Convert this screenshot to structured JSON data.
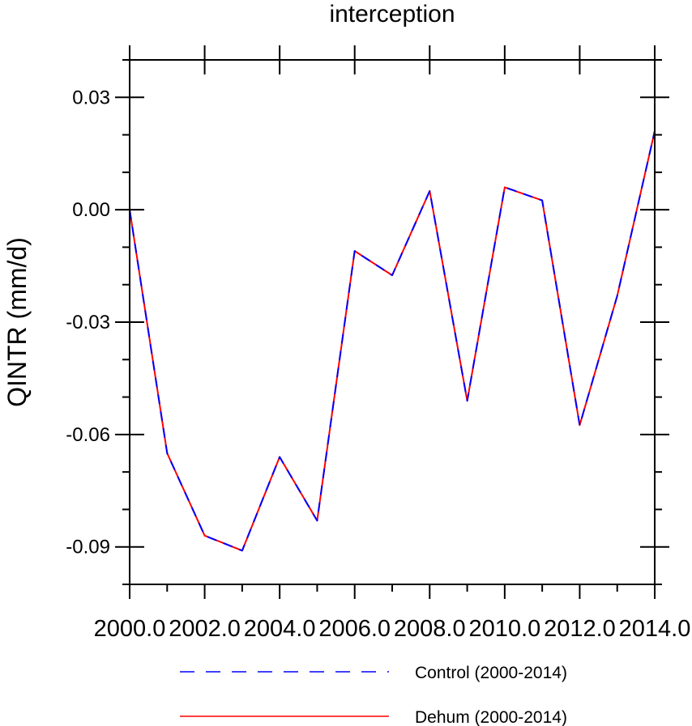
{
  "chart_data": {
    "type": "line",
    "title": "interception",
    "ylabel": "QINTR  (mm/d)",
    "xlabel": "",
    "xlim": [
      2000,
      2014
    ],
    "ylim": [
      -0.1,
      0.04
    ],
    "x_ticks": [
      2000,
      2002,
      2004,
      2006,
      2008,
      2010,
      2012,
      2014
    ],
    "x_tick_labels": [
      "2000.0",
      "2002.0",
      "2004.0",
      "2006.0",
      "2008.0",
      "2010.0",
      "2012.0",
      "2014.0"
    ],
    "y_ticks": [
      0.03,
      0.0,
      -0.03,
      -0.06,
      -0.09
    ],
    "y_tick_labels": [
      "0.03",
      "0.00",
      "-0.03",
      "-0.06",
      "-0.09"
    ],
    "grid": false,
    "legend_position": "bottom",
    "x": [
      2000,
      2001,
      2002,
      2003,
      2004,
      2005,
      2006,
      2007,
      2008,
      2009,
      2010,
      2011,
      2012,
      2013,
      2014
    ],
    "series": [
      {
        "name": "Control (2000-2014)",
        "color": "#0000ff",
        "style": "dashed",
        "values": [
          0.0,
          -0.065,
          -0.087,
          -0.091,
          -0.066,
          -0.083,
          -0.011,
          -0.0175,
          0.005,
          -0.051,
          0.006,
          0.0025,
          -0.0575,
          -0.023,
          0.021
        ]
      },
      {
        "name": "Dehum (2000-2014)",
        "color": "#ff0000",
        "style": "solid",
        "values": [
          0.0,
          -0.065,
          -0.087,
          -0.091,
          -0.066,
          -0.083,
          -0.011,
          -0.0175,
          0.005,
          -0.051,
          0.006,
          0.0025,
          -0.0575,
          -0.023,
          0.021
        ]
      }
    ]
  }
}
